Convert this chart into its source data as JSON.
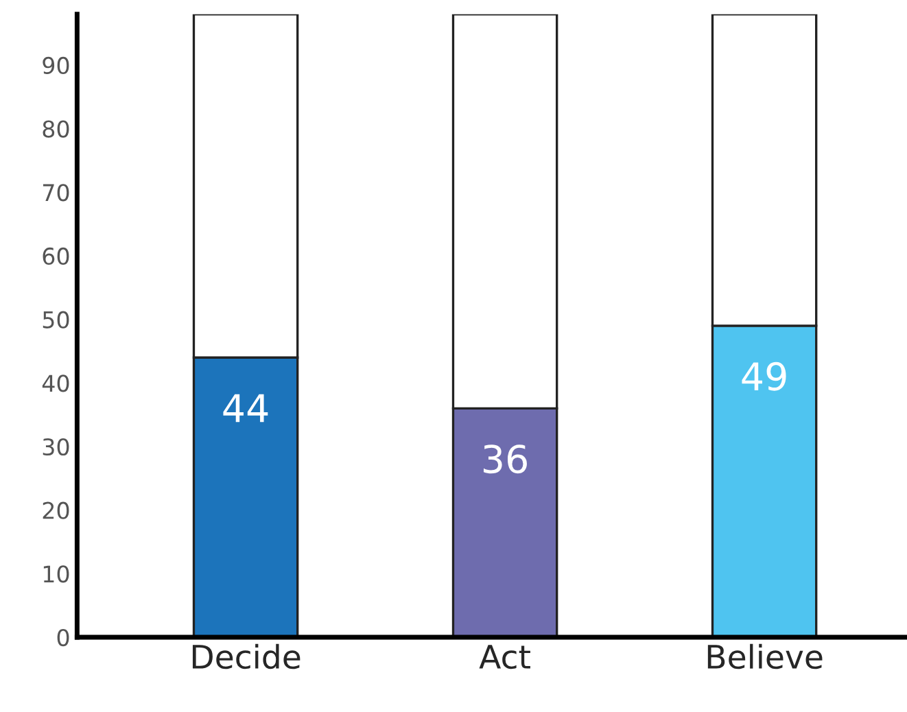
{
  "chart_data": {
    "type": "bar",
    "stacked": true,
    "categories": [
      "Decide",
      "Act",
      "Believe"
    ],
    "series": [
      {
        "colors": [
          "#1c74bb",
          "#6e6cae",
          "#4fc4f0"
        ],
        "values": [
          44,
          36,
          49
        ],
        "value_labels": [
          "44",
          "36",
          "49"
        ]
      },
      {
        "color": "#ffffff",
        "values": [
          54,
          62,
          49
        ]
      }
    ],
    "ylim": [
      0,
      98
    ],
    "yticks": [
      0,
      10,
      20,
      30,
      40,
      50,
      60,
      70,
      80,
      90
    ],
    "grid": false,
    "legend": false
  }
}
